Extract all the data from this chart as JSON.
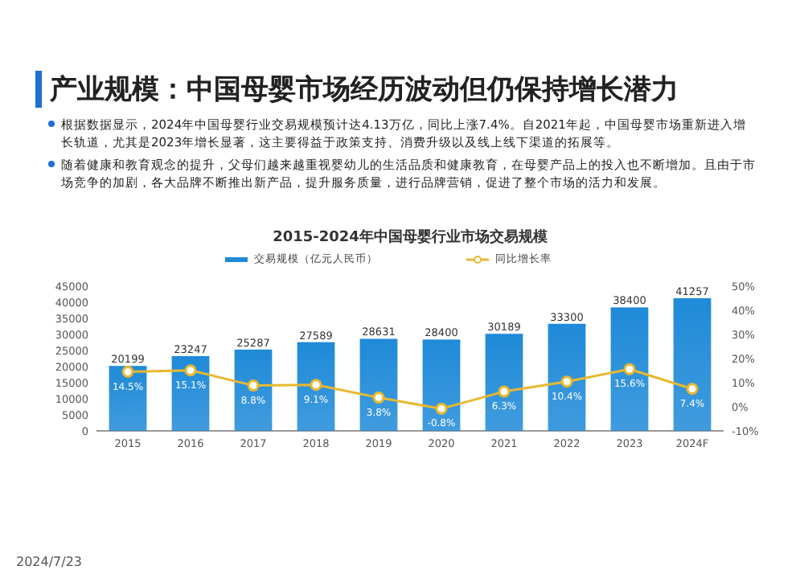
{
  "chart_data": {
    "type": "bar",
    "title": "产业规模：中国母婴市场经历波动但仍保持增长潜力",
    "subtitle": "2015-2024年中国母婴行业市场交易规模",
    "categories": [
      "2015",
      "2016",
      "2017",
      "2018",
      "2019",
      "2020",
      "2021",
      "2022",
      "2023",
      "2024F"
    ],
    "series": [
      {
        "name": "交易规模（亿元人民币）",
        "color": "#1f8ad8",
        "values": [
          20199,
          23247,
          25287,
          27589,
          28631,
          28400,
          30189,
          33300,
          38400,
          41257
        ],
        "value_labels": [
          "20199",
          "23247",
          "25287",
          "27589",
          "28631",
          "28400",
          "30189",
          "33300",
          "38400",
          "41257"
        ]
      },
      {
        "name": "同比增长率",
        "type": "line",
        "axis": "y2",
        "color": "#e8b830",
        "marker": "circle",
        "values": [
          14.5,
          15.1,
          8.8,
          9.1,
          3.8,
          -0.8,
          6.3,
          10.4,
          15.6,
          7.4
        ],
        "value_labels": [
          "14.5%",
          "15.1%",
          "8.8%",
          "9.1%",
          "3.8%",
          "-0.8%",
          "6.3%",
          "10.4%",
          "15.6%",
          "7.4%"
        ]
      }
    ],
    "ylim": [
      0,
      45000
    ],
    "yticks": [
      0,
      5000,
      10000,
      15000,
      20000,
      25000,
      30000,
      35000,
      40000,
      45000
    ],
    "y2lim": [
      -10,
      50
    ],
    "y2ticks": [
      {
        "value": -10,
        "label": "-10%"
      },
      {
        "value": 0,
        "label": "0%"
      },
      {
        "value": 10,
        "label": "10%"
      },
      {
        "value": 20,
        "label": "20%"
      },
      {
        "value": 30,
        "label": "30%"
      },
      {
        "value": 40,
        "label": "40%"
      },
      {
        "value": 50,
        "label": "50%"
      }
    ],
    "legend": "top",
    "annotations": [
      "根据数据显示，2024年中国母婴行业交易规模预计达4.13万亿，同比上涨7.4%。自2021年起，中国母婴市场重新进入增长轨道，尤其是2023年增长显著，这主要得益于政策支持、消费升级以及线上线下渠道的拓展等。",
      "随着健康和教育观念的提升，父母们越来越重视婴幼儿的生活品质和健康教育，在母婴产品上的投入也不断增加。且由于市场竞争的加剧，各大品牌不断推出新产品，提升服务质量，进行品牌营销，促进了整个市场的活力和发展。",
      "2024/7/23"
    ]
  }
}
